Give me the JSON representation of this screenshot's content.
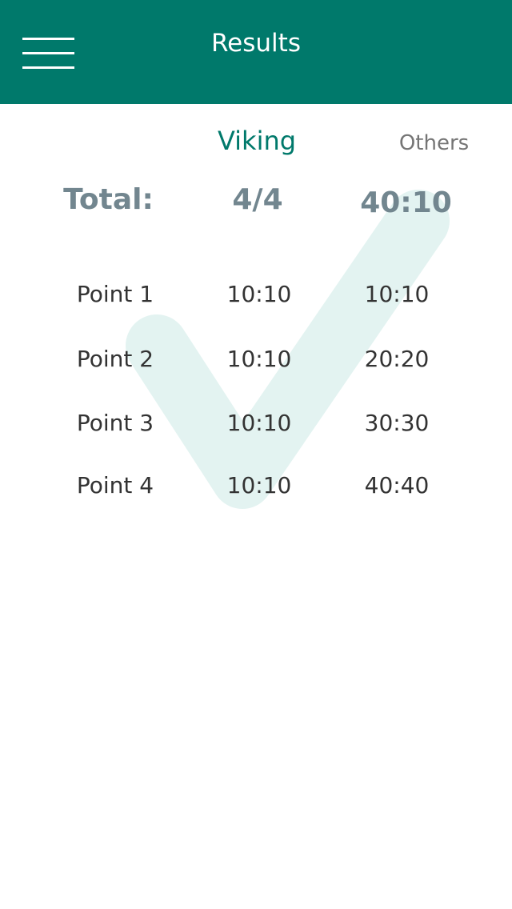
{
  "header": {
    "title": "Results",
    "background_color": "#00796b",
    "menu_icon": "hamburger-menu-icon"
  },
  "columns": {
    "viking": "Viking",
    "others": "Others"
  },
  "total": {
    "label": "Total:",
    "viking": "4/4",
    "others": "40:10"
  },
  "points": [
    {
      "name": "Point 1",
      "viking": "10:10",
      "others": "10:10"
    },
    {
      "name": "Point 2",
      "viking": "10:10",
      "others": "20:20"
    },
    {
      "name": "Point 3",
      "viking": "10:10",
      "others": "30:30"
    },
    {
      "name": "Point 4",
      "viking": "10:10",
      "others": "40:40"
    }
  ],
  "watermark": {
    "icon": "checkmark-icon",
    "color": "#e3f3f1"
  },
  "colors": {
    "accent": "#00796b",
    "total_text": "#72868f",
    "body_text": "#333333",
    "muted_text": "#757575"
  }
}
